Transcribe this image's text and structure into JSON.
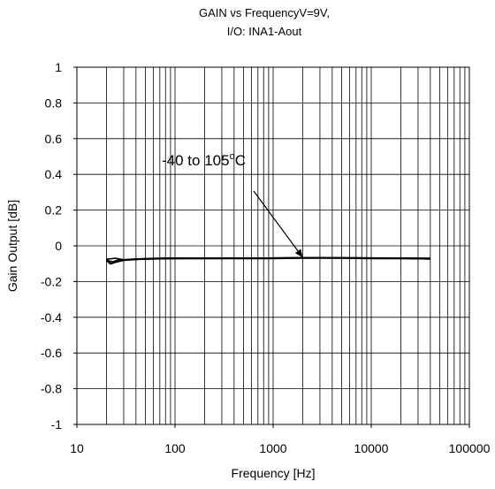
{
  "chart_data": {
    "type": "line",
    "title_lines": [
      "GAIN vs FrequencyV=9V,",
      "I/O: INA1-Aout"
    ],
    "xlabel": "Frequency [Hz]",
    "ylabel": "Gain Output [dB]",
    "xscale": "log",
    "xlim": [
      10,
      100000
    ],
    "ylim": [
      -1,
      1
    ],
    "x_ticks": [
      "10",
      "100",
      "1000",
      "10000",
      "100000"
    ],
    "y_ticks": [
      "1",
      "0.8",
      "0.6",
      "0.4",
      "0.2",
      "0",
      "-0.2",
      "-0.4",
      "-0.6",
      "-0.8",
      "-1"
    ],
    "grid": true,
    "series": [
      {
        "x": [
          20,
          22,
          25,
          30,
          40,
          60,
          80,
          100,
          200,
          400,
          1000,
          2000,
          5000,
          10000,
          20000,
          40000
        ],
        "y": [
          -0.08,
          -0.1,
          -0.09,
          -0.08,
          -0.075,
          -0.072,
          -0.07,
          -0.07,
          -0.07,
          -0.07,
          -0.07,
          -0.068,
          -0.068,
          -0.07,
          -0.07,
          -0.072
        ]
      },
      {
        "x": [
          20,
          23,
          26,
          30,
          40,
          60,
          100,
          300,
          1000,
          3000,
          10000,
          30000,
          40000
        ],
        "y": [
          -0.08,
          -0.09,
          -0.08,
          -0.078,
          -0.074,
          -0.072,
          -0.07,
          -0.07,
          -0.07,
          -0.068,
          -0.07,
          -0.072,
          -0.074
        ]
      },
      {
        "x": [
          20,
          25,
          30,
          50,
          100,
          500,
          2000,
          10000,
          40000
        ],
        "y": [
          -0.075,
          -0.07,
          -0.078,
          -0.074,
          -0.072,
          -0.07,
          -0.066,
          -0.068,
          -0.07
        ]
      }
    ],
    "annotation": {
      "text_main": "-40 to 105",
      "text_sup": "o",
      "text_tail": "C",
      "arrow_to": {
        "x": 2000,
        "y": -0.065
      }
    }
  }
}
